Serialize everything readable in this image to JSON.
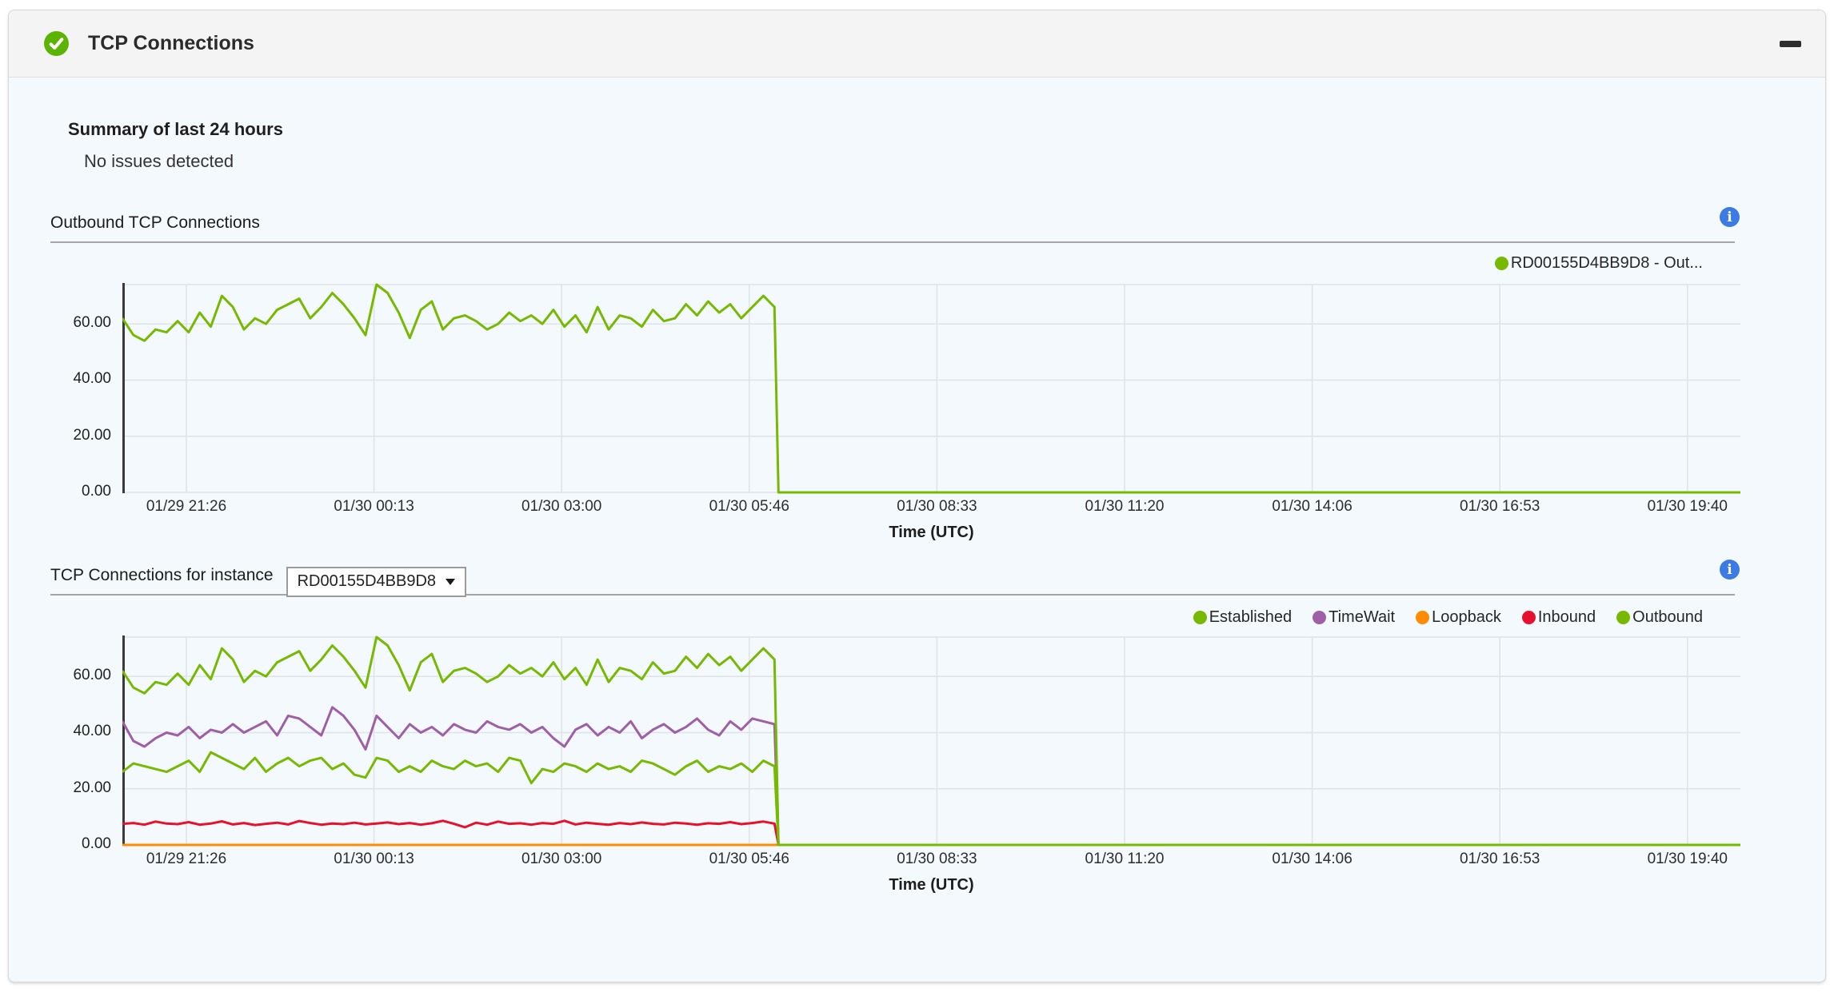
{
  "panel": {
    "title": "TCP Connections",
    "status": "ok",
    "collapse_button": "minimize"
  },
  "summary": {
    "heading": "Summary of last 24 hours",
    "status_text": "No issues detected"
  },
  "sections": {
    "outbound": {
      "title": "Outbound TCP Connections"
    },
    "instance": {
      "title": "TCP Connections for instance",
      "selected_instance": "RD00155D4BB9D8"
    }
  },
  "time_axis": {
    "label": "Time (UTC)"
  },
  "colors": {
    "green": "#77B900",
    "purple": "#9E5FA7",
    "orange": "#FF8C00",
    "red": "#E8112D",
    "info_blue": "#3C7BE3",
    "check_green": "#5DB304"
  },
  "chart_data": [
    {
      "type": "line",
      "title": "Outbound TCP Connections",
      "xlabel": "Time (UTC)",
      "x_ticks": [
        "01/29 21:26",
        "01/30 00:13",
        "01/30 03:00",
        "01/30 05:46",
        "01/30 08:33",
        "01/30 11:20",
        "01/30 14:06",
        "01/30 16:53",
        "01/30 19:40"
      ],
      "y_ticks": [
        0,
        20,
        40,
        60
      ],
      "y_tick_labels": [
        "0.00",
        "20.00",
        "40.00",
        "60.00"
      ],
      "ylim": [
        0,
        74
      ],
      "grid": true,
      "legend_position": "top-right",
      "drop_fraction": 0.403,
      "note": "Series fluctuates ~55-74 until just after 01/30 05:46, then drops to 0 and stays flat through 01/30 19:40",
      "legend": [
        {
          "label": "RD00155D4BB9D8 - Out...",
          "color": "#77B900"
        }
      ],
      "series": [
        {
          "name": "RD00155D4BB9D8 - Outbound",
          "color": "#77B900",
          "values": [
            62,
            56,
            54,
            58,
            57,
            61,
            57,
            64,
            59,
            70,
            66,
            58,
            62,
            60,
            65,
            67,
            69,
            62,
            66,
            71,
            67,
            62,
            56,
            74,
            71,
            64,
            55,
            65,
            68,
            58,
            62,
            63,
            61,
            58,
            60,
            64,
            61,
            63,
            60,
            65,
            59,
            63,
            57,
            66,
            58,
            63,
            62,
            59,
            65,
            61,
            62,
            67,
            63,
            68,
            64,
            67,
            62,
            66,
            70,
            66
          ]
        }
      ]
    },
    {
      "type": "line",
      "title": "TCP Connections for instance RD00155D4BB9D8",
      "xlabel": "Time (UTC)",
      "x_ticks": [
        "01/29 21:26",
        "01/30 00:13",
        "01/30 03:00",
        "01/30 05:46",
        "01/30 08:33",
        "01/30 11:20",
        "01/30 14:06",
        "01/30 16:53",
        "01/30 19:40"
      ],
      "y_ticks": [
        0,
        20,
        40,
        60
      ],
      "y_tick_labels": [
        "0.00",
        "20.00",
        "40.00",
        "60.00"
      ],
      "ylim": [
        0,
        74
      ],
      "grid": true,
      "legend_position": "top-right",
      "drop_fraction": 0.403,
      "note": "All series drop to 0 just after 01/30 05:46 and stay flat; Loopback is 0 throughout",
      "legend": [
        {
          "label": "Established",
          "color": "#77B900"
        },
        {
          "label": "TimeWait",
          "color": "#9E5FA7"
        },
        {
          "label": "Loopback",
          "color": "#FF8C00"
        },
        {
          "label": "Inbound",
          "color": "#E8112D"
        },
        {
          "label": "Outbound",
          "color": "#77B900"
        }
      ],
      "series": [
        {
          "name": "Loopback",
          "color": "#FF8C00",
          "values": [
            0,
            0
          ]
        },
        {
          "name": "Inbound",
          "color": "#E8112D",
          "values": [
            7.5,
            7.8,
            7.2,
            8.3,
            7.6,
            7.4,
            8.1,
            7.2,
            7.6,
            8.4,
            7.3,
            7.8,
            7.1,
            7.5,
            7.9,
            7.3,
            8.5,
            7.8,
            7.2,
            7.6,
            7.4,
            7.9,
            7.3,
            7.6,
            8.0,
            7.4,
            7.8,
            7.2,
            7.7,
            8.6,
            7.5,
            6.3,
            7.9,
            7.2,
            8.3,
            7.5,
            7.7,
            7.2,
            7.8,
            7.5,
            8.6,
            7.3,
            7.9,
            7.5,
            7.2,
            7.8,
            7.4,
            8.0,
            7.5,
            7.3,
            7.9,
            7.6,
            7.2,
            7.7,
            7.5,
            8.1,
            7.4,
            7.8,
            8.3,
            7.6
          ]
        },
        {
          "name": "TimeWait",
          "color": "#9E5FA7",
          "values": [
            44,
            37,
            35,
            38,
            40,
            39,
            42,
            38,
            41,
            40,
            43,
            40,
            42,
            44,
            39,
            46,
            45,
            42,
            39,
            49,
            46,
            41,
            34,
            46,
            42,
            38,
            43,
            40,
            42,
            39,
            43,
            41,
            40,
            44,
            42,
            41,
            43,
            40,
            42,
            38,
            35,
            41,
            43,
            39,
            42,
            40,
            44,
            38,
            41,
            43,
            40,
            42,
            45,
            41,
            39,
            44,
            41,
            45,
            44,
            43
          ]
        },
        {
          "name": "Outbound",
          "color": "#77B900",
          "values": [
            26,
            29,
            28,
            27,
            26,
            28,
            30,
            26,
            33,
            31,
            29,
            27,
            31,
            26,
            29,
            31,
            28,
            30,
            31,
            27,
            29,
            25,
            24,
            31,
            30,
            26,
            28,
            26,
            30,
            28,
            27,
            30,
            28,
            29,
            26,
            31,
            30,
            22,
            27,
            26,
            29,
            28,
            26,
            29,
            27,
            28,
            26,
            30,
            29,
            27,
            25,
            28,
            30,
            26,
            28,
            27,
            29,
            26,
            30,
            28
          ]
        },
        {
          "name": "Established",
          "color": "#77B900",
          "values": [
            62,
            56,
            54,
            58,
            57,
            61,
            57,
            64,
            59,
            70,
            66,
            58,
            62,
            60,
            65,
            67,
            69,
            62,
            66,
            71,
            67,
            62,
            56,
            74,
            71,
            64,
            55,
            65,
            68,
            58,
            62,
            63,
            61,
            58,
            60,
            64,
            61,
            63,
            60,
            65,
            59,
            63,
            57,
            66,
            58,
            63,
            62,
            59,
            65,
            61,
            62,
            67,
            63,
            68,
            64,
            67,
            62,
            66,
            70,
            66
          ]
        }
      ]
    }
  ]
}
